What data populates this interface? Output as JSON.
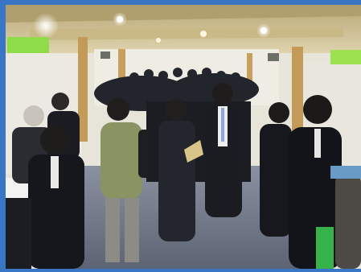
{
  "photo": {
    "subject": "crowded-hall-networking-event",
    "colors": {
      "frame": "#3a76c6",
      "ceiling": "#cdbf94",
      "wall": "#e7e4da",
      "carpet": "#6c7486",
      "suit": "#15171c",
      "jacket": "#8a9462"
    },
    "icons": [
      "ceiling-light-icon",
      "green-sign-icon",
      "wooden-pillar-icon"
    ]
  }
}
